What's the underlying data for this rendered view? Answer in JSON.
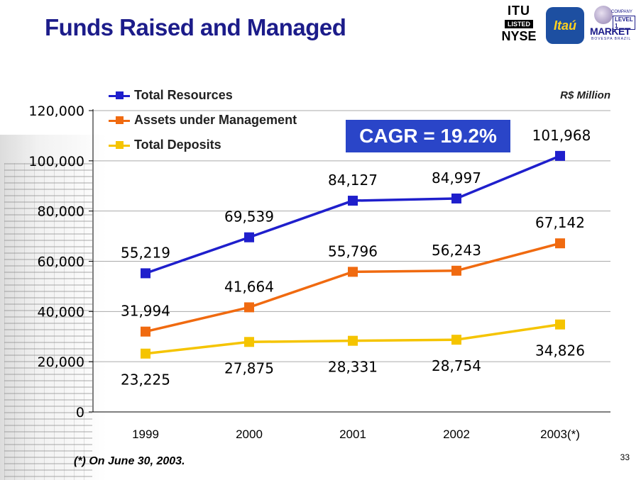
{
  "header": {
    "title": "Funds Raised and Managed"
  },
  "logos": {
    "itu": "ITU",
    "listed": "LISTED",
    "nyse": "NYSE",
    "itau": "Itaú",
    "company": "COMPANY",
    "level": "LEVEL 1",
    "market": "MARKET",
    "bovespa": "BOVESPA BRAZIL"
  },
  "unit_label": "R$ Million",
  "cagr_label": "CAGR = 19.2%",
  "footnote": "(*) On June 30, 2003.",
  "page_number": "33",
  "colors": {
    "title": "#1c1c8a",
    "cagr_box": "#2a45c8",
    "total_resources": "#1f1fcc",
    "assets_under_management": "#f06a10",
    "total_deposits": "#f5c400"
  },
  "chart_data": {
    "type": "line",
    "categories": [
      "1999",
      "2000",
      "2001",
      "2002",
      "2003(*)"
    ],
    "ylim": [
      0,
      120000
    ],
    "yticks": [
      "0",
      "20,000",
      "40,000",
      "60,000",
      "80,000",
      "100,000",
      "120,000"
    ],
    "grid": true,
    "legend_position": "top-left",
    "series": [
      {
        "name": "Total Resources",
        "values": [
          55219,
          69539,
          84127,
          84997,
          101968
        ],
        "labels": [
          "55,219",
          "69,539",
          "84,127",
          "84,997",
          "101,968"
        ],
        "color": "#1f1fcc",
        "label_position": "above"
      },
      {
        "name": "Assets under Management",
        "values": [
          31994,
          41664,
          55796,
          56243,
          67142
        ],
        "labels": [
          "31,994",
          "41,664",
          "55,796",
          "56,243",
          "67,142"
        ],
        "color": "#f06a10",
        "label_position": "above"
      },
      {
        "name": "Total Deposits",
        "values": [
          23225,
          27875,
          28331,
          28754,
          34826
        ],
        "labels": [
          "23,225",
          "27,875",
          "28,331",
          "28,754",
          "34,826"
        ],
        "color": "#f5c400",
        "label_position": "below"
      }
    ]
  }
}
